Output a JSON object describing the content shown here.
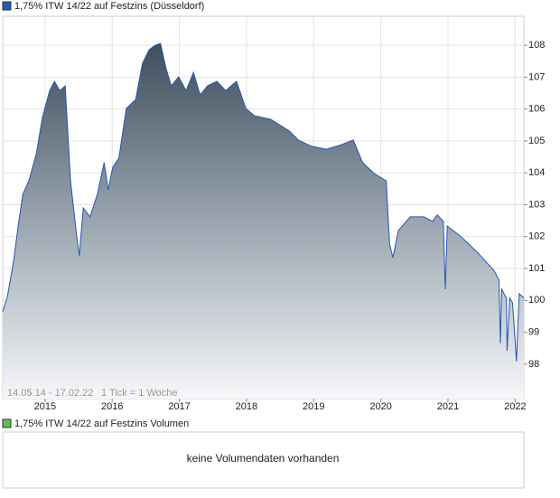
{
  "chart_data": {
    "type": "area",
    "series": [
      {
        "name": "1,75% ITW 14/22 auf Festzins (Düsseldorf)",
        "color": "#2456b5",
        "values": [
          99.64,
          100.12,
          101.2,
          102.33,
          103.33,
          103.75,
          104.6,
          105.73,
          106.58,
          106.87,
          106.58,
          106.73,
          103.75,
          102.05,
          101.4,
          102.9,
          102.62,
          103.33,
          104.32,
          103.47,
          104.18,
          104.46,
          106.02,
          106.3,
          107.43,
          107.86,
          108.0,
          108.06,
          107.29,
          106.73,
          107.01,
          106.58,
          107.15,
          106.44,
          106.73,
          106.87,
          106.58,
          106.87,
          106.02,
          105.79,
          105.68,
          105.31,
          105.03,
          104.83,
          104.74,
          104.88,
          105.03,
          104.32,
          103.98,
          103.75,
          101.77,
          101.34,
          102.19,
          102.62,
          102.62,
          102.48,
          102.68,
          102.48,
          100.35,
          102.33,
          101.99,
          101.48,
          100.92,
          100.63,
          98.65,
          100.35,
          100.07,
          98.42,
          100.07,
          99.93,
          98.09,
          100.21,
          100.07
        ]
      }
    ],
    "x": [
      2014.37,
      2014.44,
      2014.53,
      2014.6,
      2014.67,
      2014.76,
      2014.87,
      2014.96,
      2015.07,
      2015.14,
      2015.22,
      2015.3,
      2015.38,
      2015.47,
      2015.51,
      2015.57,
      2015.67,
      2015.78,
      2015.88,
      2015.94,
      2016.01,
      2016.1,
      2016.21,
      2016.35,
      2016.45,
      2016.55,
      2016.64,
      2016.72,
      2016.8,
      2016.88,
      2016.99,
      2017.1,
      2017.21,
      2017.31,
      2017.42,
      2017.56,
      2017.69,
      2017.85,
      2017.99,
      2018.12,
      2018.36,
      2018.64,
      2018.77,
      2018.97,
      2019.19,
      2019.41,
      2019.59,
      2019.73,
      2019.9,
      2020.08,
      2020.13,
      2020.18,
      2020.26,
      2020.44,
      2020.64,
      2020.77,
      2020.84,
      2020.93,
      2020.96,
      2020.99,
      2021.2,
      2021.45,
      2021.69,
      2021.76,
      2021.78,
      2021.8,
      2021.87,
      2021.88,
      2021.92,
      2021.96,
      2022.02,
      2022.06,
      2022.13
    ],
    "xlim": [
      2014.37,
      2022.13
    ],
    "xticks": [
      2015,
      2016,
      2017,
      2018,
      2019,
      2020,
      2021,
      2022
    ],
    "ylim": [
      96.92,
      108.91
    ],
    "yticks": [
      98,
      99,
      100,
      101,
      102,
      103,
      104,
      105,
      106,
      107,
      108
    ],
    "grid": true,
    "annotations": [
      "14.05.14 - 17.02.22",
      "1 Tick = 1 Woche"
    ],
    "volume_panel": {
      "legend": "1,75% ITW 14/22 auf Festzins Volumen",
      "color": "#66bb55",
      "message": "keine Volumendaten vorhanden"
    }
  }
}
